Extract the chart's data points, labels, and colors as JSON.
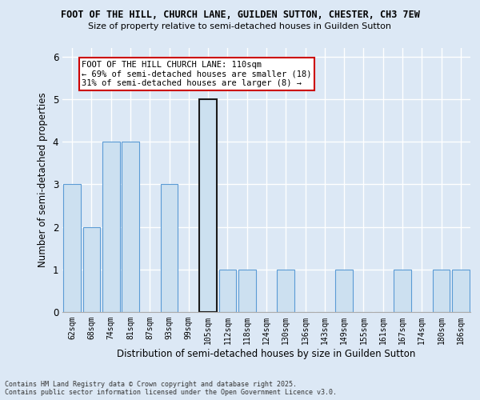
{
  "title1": "FOOT OF THE HILL, CHURCH LANE, GUILDEN SUTTON, CHESTER, CH3 7EW",
  "title2": "Size of property relative to semi-detached houses in Guilden Sutton",
  "xlabel": "Distribution of semi-detached houses by size in Guilden Sutton",
  "ylabel": "Number of semi-detached properties",
  "footnote": "Contains HM Land Registry data © Crown copyright and database right 2025.\nContains public sector information licensed under the Open Government Licence v3.0.",
  "categories": [
    "62sqm",
    "68sqm",
    "74sqm",
    "81sqm",
    "87sqm",
    "93sqm",
    "99sqm",
    "105sqm",
    "112sqm",
    "118sqm",
    "124sqm",
    "130sqm",
    "136sqm",
    "143sqm",
    "149sqm",
    "155sqm",
    "161sqm",
    "167sqm",
    "174sqm",
    "180sqm",
    "186sqm"
  ],
  "values": [
    3,
    2,
    4,
    4,
    0,
    3,
    0,
    5,
    1,
    1,
    0,
    1,
    0,
    0,
    1,
    0,
    0,
    1,
    0,
    1,
    1
  ],
  "highlight_index": 7,
  "bar_color": "#cce0f0",
  "bar_edge_color": "#5b9bd5",
  "highlight_bar_edge_color": "#1a1a1a",
  "bg_color": "#dce8f5",
  "grid_color": "#ffffff",
  "annotation_text": "FOOT OF THE HILL CHURCH LANE: 110sqm\n← 69% of semi-detached houses are smaller (18)\n31% of semi-detached houses are larger (8) →",
  "annotation_box_color": "#ffffff",
  "annotation_box_edge_color": "#cc0000",
  "ylim": [
    0,
    6.2
  ],
  "yticks": [
    0,
    1,
    2,
    3,
    4,
    5,
    6
  ]
}
